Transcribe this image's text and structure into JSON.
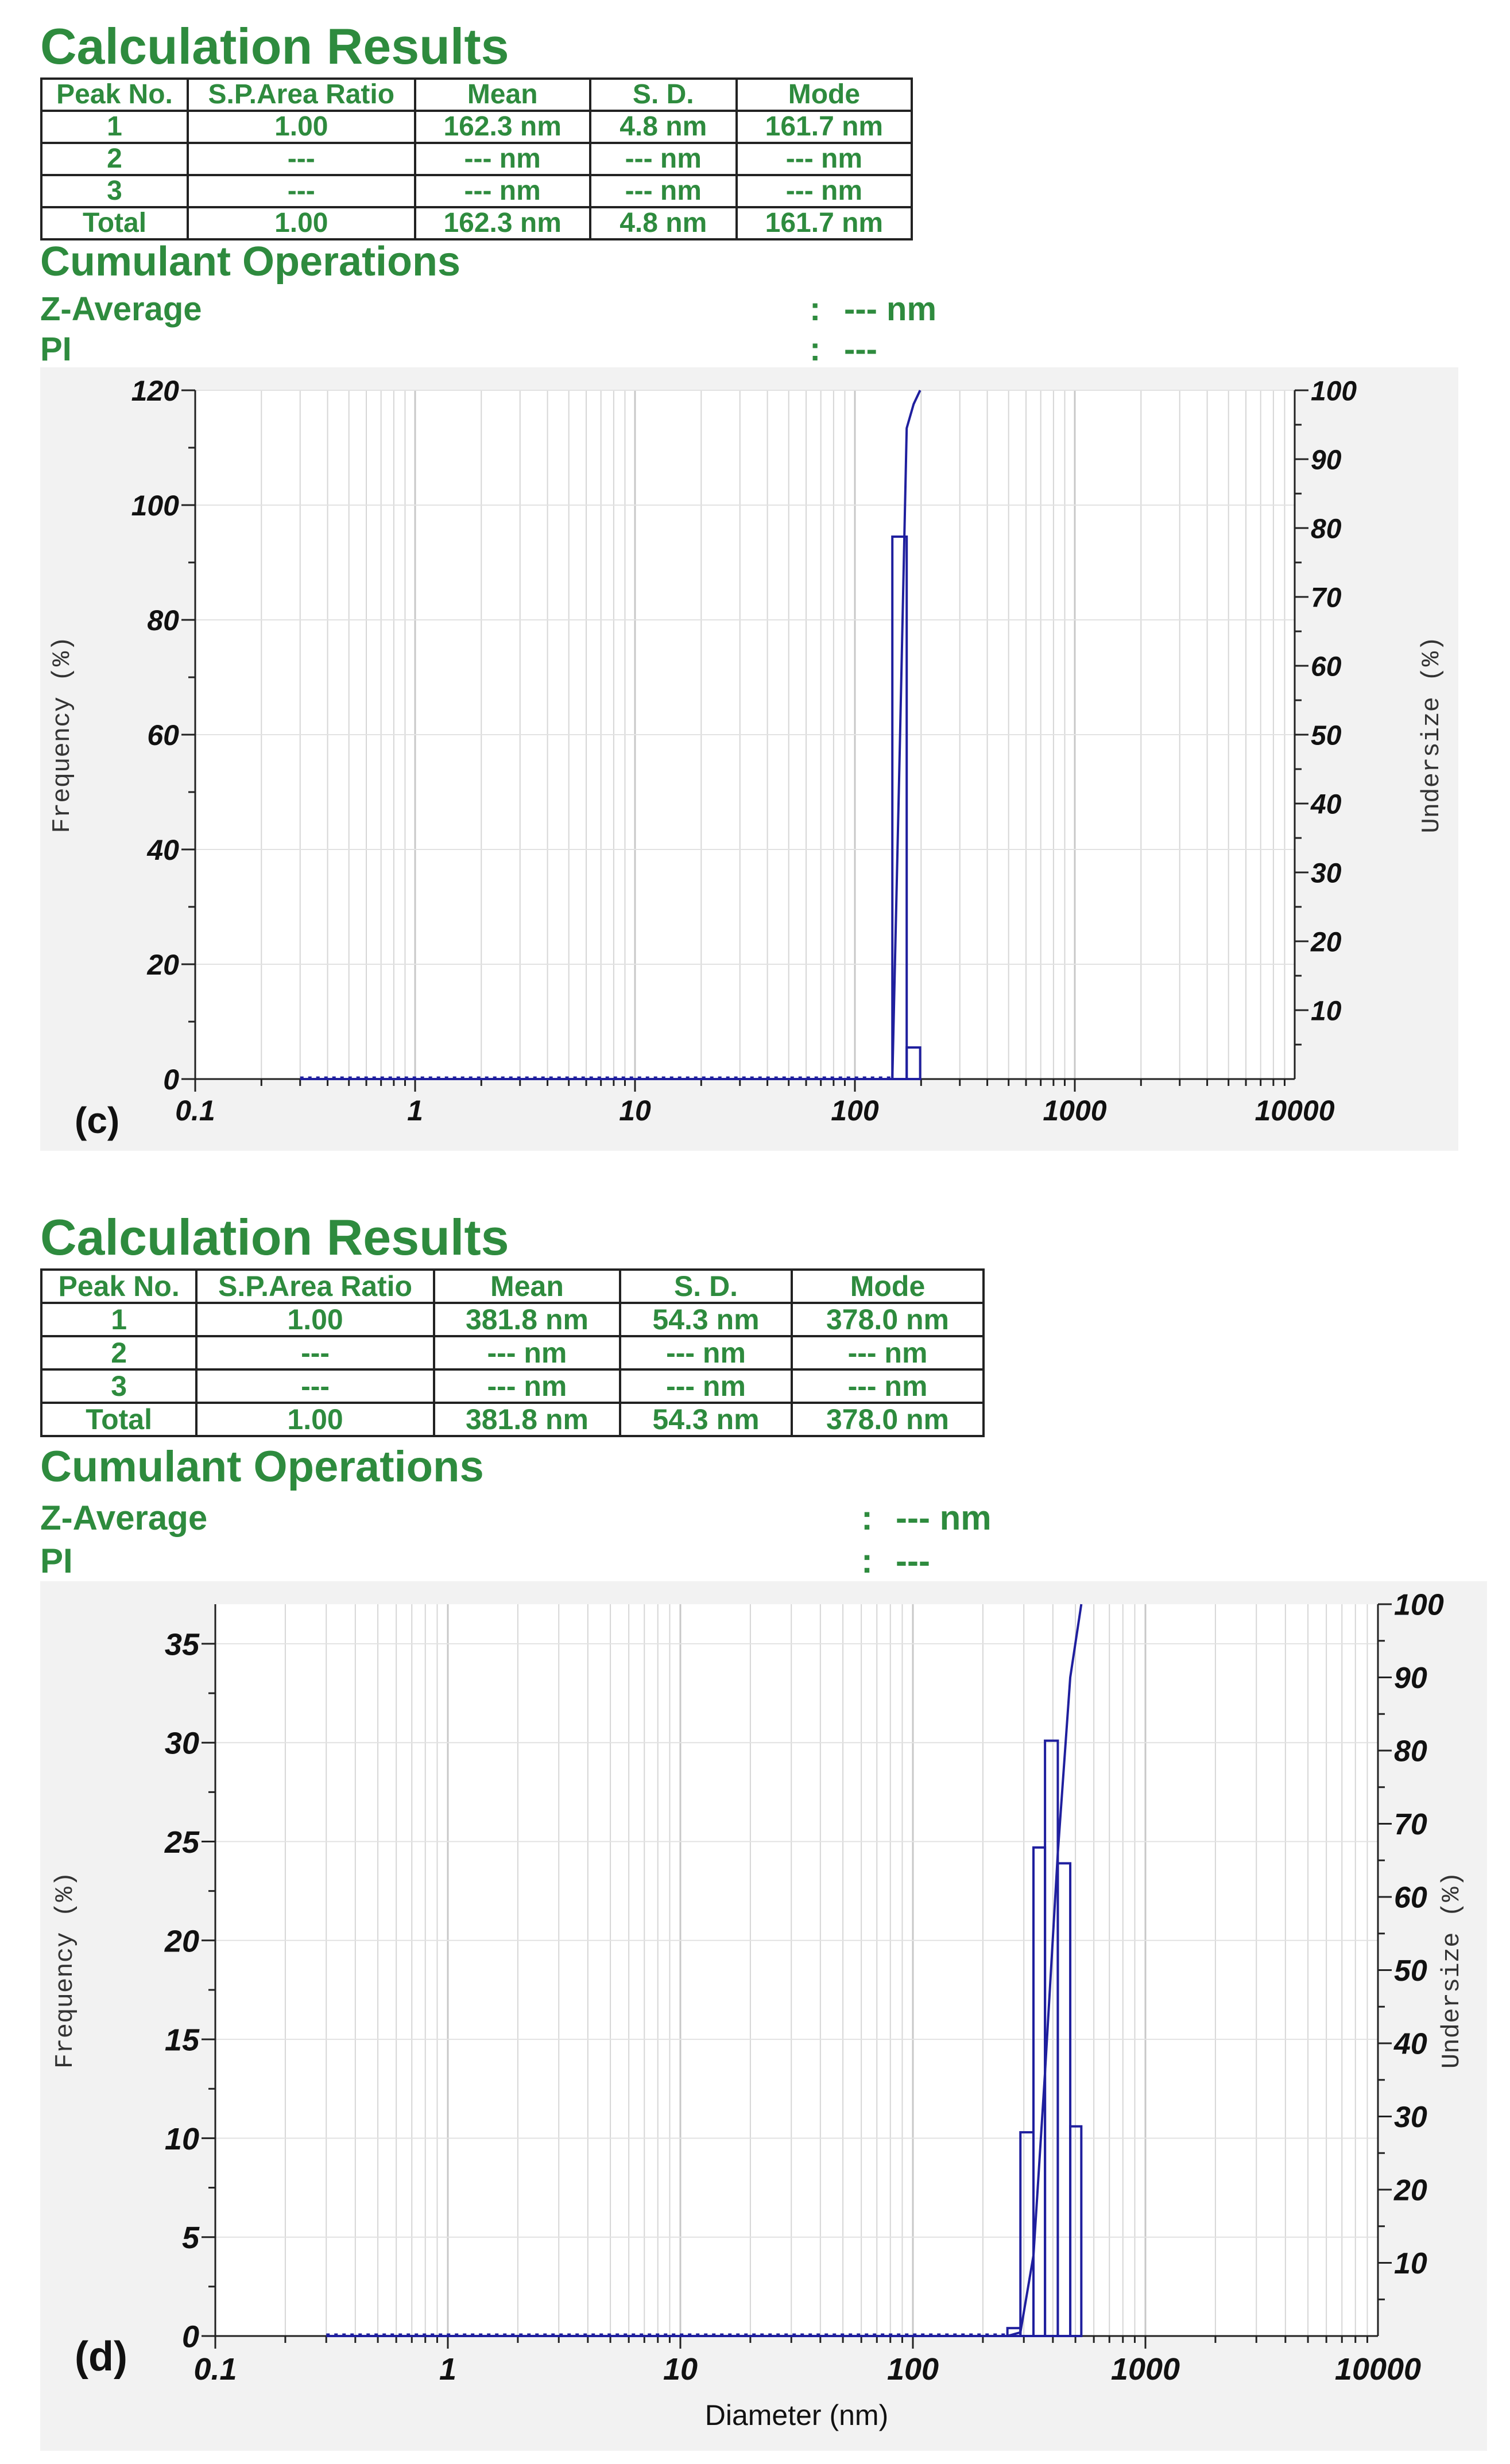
{
  "panels": [
    {
      "title": "Calculation Results",
      "table": {
        "headers": [
          "Peak No.",
          "S.P.Area Ratio",
          "Mean",
          "S. D.",
          "Mode"
        ],
        "rows": [
          [
            "1",
            "1.00",
            "162.3 nm",
            "4.8 nm",
            "161.7 nm"
          ],
          [
            "2",
            "---",
            "--- nm",
            "--- nm",
            "--- nm"
          ],
          [
            "3",
            "---",
            "--- nm",
            "--- nm",
            "--- nm"
          ],
          [
            "Total",
            "1.00",
            "162.3 nm",
            "4.8 nm",
            "161.7 nm"
          ]
        ]
      },
      "cumulant": {
        "heading": "Cumulant Operations",
        "rows": [
          {
            "label": "Z-Average",
            "colon": ":",
            "value": "--- nm"
          },
          {
            "label": "PI",
            "colon": ":",
            "value": "---"
          }
        ]
      },
      "panel_label": "(c)"
    },
    {
      "title": "Calculation Results",
      "table": {
        "headers": [
          "Peak No.",
          "S.P.Area Ratio",
          "Mean",
          "S. D.",
          "Mode"
        ],
        "rows": [
          [
            "1",
            "1.00",
            "381.8 nm",
            "54.3 nm",
            "378.0 nm"
          ],
          [
            "2",
            "---",
            "--- nm",
            "--- nm",
            "--- nm"
          ],
          [
            "3",
            "---",
            "--- nm",
            "--- nm",
            "--- nm"
          ],
          [
            "Total",
            "1.00",
            "381.8 nm",
            "54.3 nm",
            "378.0 nm"
          ]
        ]
      },
      "cumulant": {
        "heading": "Cumulant Operations",
        "rows": [
          {
            "label": "Z-Average",
            "colon": ":",
            "value": "--- nm"
          },
          {
            "label": "PI",
            "colon": ":",
            "value": "---"
          }
        ]
      },
      "panel_label": "(d)"
    }
  ],
  "chart_data": [
    {
      "type": "bar",
      "x_scale": "log",
      "xlim": [
        0.1,
        10000
      ],
      "x_ticks": [
        "0.1",
        "1",
        "10",
        "100",
        "1000",
        "10000"
      ],
      "xlabel": "",
      "ylabel": "Frequency (%)",
      "ylim": [
        0,
        120
      ],
      "y_ticks": [
        "0",
        "20",
        "40",
        "60",
        "80",
        "100",
        "120"
      ],
      "y2label": "Undersize (%)",
      "y2lim": [
        0,
        100
      ],
      "y2_ticks": [
        "10",
        "20",
        "30",
        "40",
        "50",
        "60",
        "70",
        "80",
        "90",
        "100"
      ],
      "grid": true,
      "bar_color": "#1f1f9e",
      "line_color": "#1f1f9e",
      "bars": [
        {
          "x0": 148,
          "x1": 172,
          "value": 94.5
        },
        {
          "x0": 172,
          "x1": 198,
          "value": 5.5
        }
      ],
      "undersize_curve": {
        "x": [
          0.3,
          148,
          160,
          172,
          185,
          198
        ],
        "y": [
          0,
          0,
          48,
          94.5,
          98,
          100
        ]
      }
    },
    {
      "type": "bar",
      "x_scale": "log",
      "xlim": [
        0.1,
        10000
      ],
      "x_ticks": [
        "0.1",
        "1",
        "10",
        "100",
        "1000",
        "10000"
      ],
      "xlabel": "Diameter (nm)",
      "ylabel": "Frequency (%)",
      "ylim": [
        0,
        37
      ],
      "y_ticks": [
        "0",
        "5",
        "10",
        "15",
        "20",
        "25",
        "30",
        "35"
      ],
      "y2label": "Undersize (%)",
      "y2lim": [
        0,
        100
      ],
      "y2_ticks": [
        "10",
        "20",
        "30",
        "40",
        "50",
        "60",
        "70",
        "80",
        "90",
        "100"
      ],
      "grid": true,
      "bar_color": "#1f1f9e",
      "line_color": "#1f1f9e",
      "bars": [
        {
          "x0": 255,
          "x1": 290,
          "value": 0.4
        },
        {
          "x0": 290,
          "x1": 330,
          "value": 10.3
        },
        {
          "x0": 330,
          "x1": 370,
          "value": 24.7
        },
        {
          "x0": 370,
          "x1": 420,
          "value": 30.1
        },
        {
          "x0": 420,
          "x1": 475,
          "value": 23.9
        },
        {
          "x0": 475,
          "x1": 530,
          "value": 10.6
        }
      ],
      "undersize_curve": {
        "x": [
          0.3,
          255,
          290,
          330,
          370,
          420,
          475,
          530
        ],
        "y": [
          0,
          0,
          0.5,
          11,
          36,
          66,
          90,
          100
        ]
      }
    }
  ]
}
